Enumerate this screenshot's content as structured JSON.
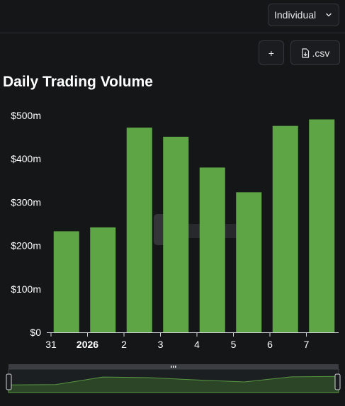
{
  "header": {
    "view_select": "Individual",
    "add_button_label": "+",
    "csv_button_label": ".csv"
  },
  "chart_data": {
    "type": "bar",
    "title": "Daily Trading Volume",
    "categories": [
      "31",
      "2026",
      "2",
      "3",
      "4",
      "5",
      "6",
      "7"
    ],
    "values": [
      233,
      242,
      472,
      451,
      380,
      323,
      476,
      491
    ],
    "value_unit": "millions USD",
    "ylim": [
      0,
      500
    ],
    "yticks": [
      "$0",
      "$100m",
      "$200m",
      "$300m",
      "$400m",
      "$500m"
    ],
    "bold_categories": [
      "2026"
    ],
    "bar_color": "#5ea545",
    "grid": false,
    "legend": "none"
  }
}
